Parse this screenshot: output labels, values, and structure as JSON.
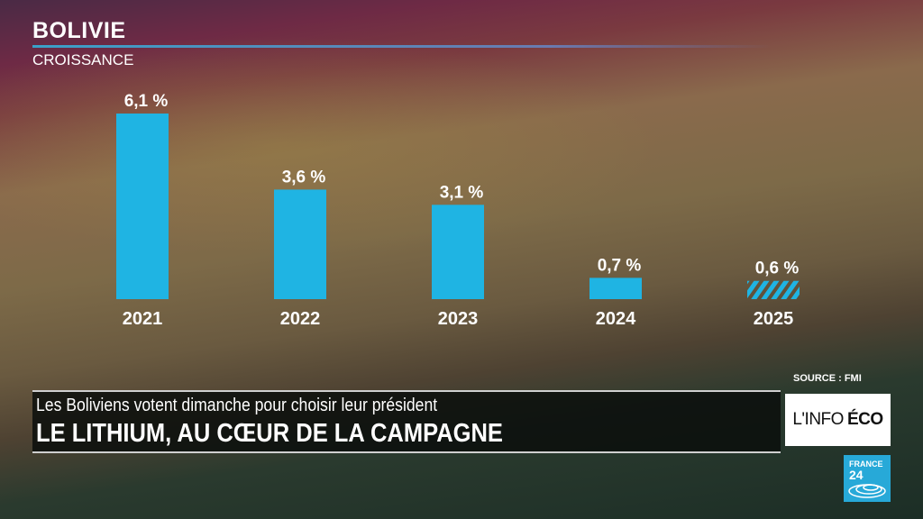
{
  "header": {
    "title": "BOLIVIE",
    "subtitle": "CROISSANCE"
  },
  "chart_data": {
    "type": "bar",
    "title": "BOLIVIE",
    "subtitle": "CROISSANCE",
    "categories": [
      "2021",
      "2022",
      "2023",
      "2024",
      "2025"
    ],
    "values": [
      6.1,
      3.6,
      3.1,
      0.7,
      0.6
    ],
    "labels": [
      "6,1 %",
      "3,6 %",
      "3,1 %",
      "0,7 %",
      "0,6 %"
    ],
    "forecast": [
      false,
      false,
      false,
      false,
      true
    ],
    "unit": "%",
    "bar_color": "#1fb4e3",
    "ylim": [
      0,
      6.1
    ],
    "grid": false
  },
  "source": "SOURCE : FMI",
  "banner": {
    "line1": "Les Boliviens votent dimanche pour choisir leur président",
    "line2": "LE LITHIUM, AU CŒUR DE LA CAMPAGNE"
  },
  "logo": {
    "show_prefix": "L'INFO",
    "show_suffix": "ÉCO",
    "channel_line1": "FRANCE",
    "channel_line2": "24"
  }
}
